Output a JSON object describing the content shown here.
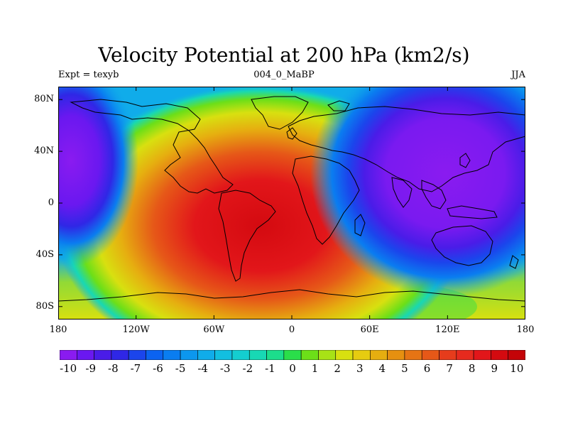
{
  "figure": {
    "title": "Velocity Potential at 200 hPa (km2/s)",
    "left_string": "Expt = texyb",
    "center_string": "004_0_MaBP",
    "right_string": "JJA"
  },
  "map_axes": {
    "lon_range": [
      -180,
      180
    ],
    "lat_range": [
      -90,
      90
    ],
    "x_ticks": [
      {
        "value": -180,
        "label": "180"
      },
      {
        "value": -120,
        "label": "120W"
      },
      {
        "value": -60,
        "label": "60W"
      },
      {
        "value": 0,
        "label": "0"
      },
      {
        "value": 60,
        "label": "60E"
      },
      {
        "value": 120,
        "label": "120E"
      },
      {
        "value": 180,
        "label": "180"
      }
    ],
    "y_ticks": [
      {
        "value": 80,
        "label": "80N"
      },
      {
        "value": 40,
        "label": "40N"
      },
      {
        "value": 0,
        "label": "0"
      },
      {
        "value": -40,
        "label": "40S"
      },
      {
        "value": -80,
        "label": "80S"
      }
    ]
  },
  "chart_data": {
    "type": "heatmap",
    "title": "Velocity Potential at 200 hPa (km2/s)",
    "units": "km2/s",
    "x_range": [
      -180,
      180
    ],
    "y_range": [
      -90,
      90
    ],
    "field_centers": [
      {
        "lon": -25,
        "lat": -18,
        "value": 10
      },
      {
        "lon": 130,
        "lat": 20,
        "value": -10
      },
      {
        "lon": -165,
        "lat": 30,
        "value": -10
      }
    ],
    "colorbar_levels": [
      -10,
      -9,
      -8,
      -7,
      -6,
      -5,
      -4,
      -3,
      -2,
      -1,
      0,
      1,
      2,
      3,
      4,
      5,
      6,
      7,
      8,
      9,
      10
    ],
    "colorbar_labels": [
      "-10",
      "-9",
      "-8",
      "-7",
      "-6",
      "-5",
      "-4",
      "-3",
      "-2",
      "-1",
      "0",
      "1",
      "2",
      "3",
      "4",
      "5",
      "6",
      "7",
      "8",
      "9",
      "10"
    ],
    "colorbar_colors": [
      "#8a1bf0",
      "#6a18f0",
      "#4a1ce8",
      "#2f27e6",
      "#1b45ec",
      "#0b63f0",
      "#0a7df0",
      "#0c97ee",
      "#10acea",
      "#12bfe0",
      "#14ced0",
      "#18d8b4",
      "#1cdd8c",
      "#2ade4a",
      "#6cdf18",
      "#a8e216",
      "#d8e010",
      "#e6cc10",
      "#e6ae10",
      "#e69010",
      "#e67414",
      "#e65818",
      "#e63c1c",
      "#e62a1e",
      "#e2161a",
      "#d40a10",
      "#c40408"
    ]
  }
}
